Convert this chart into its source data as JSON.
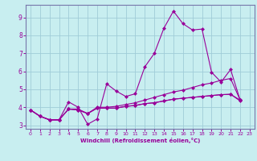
{
  "xlabel": "Windchill (Refroidissement éolien,°C)",
  "bg_color": "#c8eef0",
  "grid_color": "#a0ccd8",
  "line_color": "#990099",
  "spine_color": "#7777aa",
  "xlim": [
    -0.5,
    23.5
  ],
  "ylim": [
    2.8,
    9.7
  ],
  "yticks": [
    3,
    4,
    5,
    6,
    7,
    8,
    9
  ],
  "xticks": [
    0,
    1,
    2,
    3,
    4,
    5,
    6,
    7,
    8,
    9,
    10,
    11,
    12,
    13,
    14,
    15,
    16,
    17,
    18,
    19,
    20,
    21,
    22,
    23
  ],
  "x_vals": [
    0,
    1,
    2,
    3,
    4,
    5,
    6,
    7,
    8,
    9,
    10,
    11,
    12,
    13,
    14,
    15,
    16,
    17,
    18,
    19,
    20,
    21,
    22
  ],
  "s1": [
    3.85,
    3.5,
    3.3,
    3.3,
    4.3,
    4.0,
    3.05,
    3.35,
    5.3,
    4.9,
    4.6,
    4.75,
    6.25,
    7.0,
    8.4,
    9.35,
    8.65,
    8.3,
    8.35,
    5.95,
    5.4,
    6.1,
    4.4
  ],
  "s2": [
    3.85,
    3.5,
    3.3,
    3.3,
    3.9,
    3.9,
    3.65,
    4.0,
    4.0,
    4.05,
    4.15,
    4.25,
    4.4,
    4.55,
    4.7,
    4.85,
    4.95,
    5.1,
    5.25,
    5.35,
    5.5,
    5.6,
    4.4
  ],
  "s3": [
    3.85,
    3.5,
    3.3,
    3.3,
    3.9,
    3.85,
    3.65,
    3.95,
    3.95,
    3.95,
    4.05,
    4.1,
    4.2,
    4.25,
    4.35,
    4.45,
    4.5,
    4.55,
    4.6,
    4.65,
    4.7,
    4.72,
    4.4
  ],
  "s4": [
    3.85,
    3.5,
    3.3,
    3.3,
    3.9,
    3.85,
    3.65,
    3.95,
    3.95,
    3.95,
    4.05,
    4.1,
    4.2,
    4.25,
    4.35,
    4.45,
    4.5,
    4.55,
    4.6,
    4.65,
    4.7,
    4.72,
    4.35
  ]
}
